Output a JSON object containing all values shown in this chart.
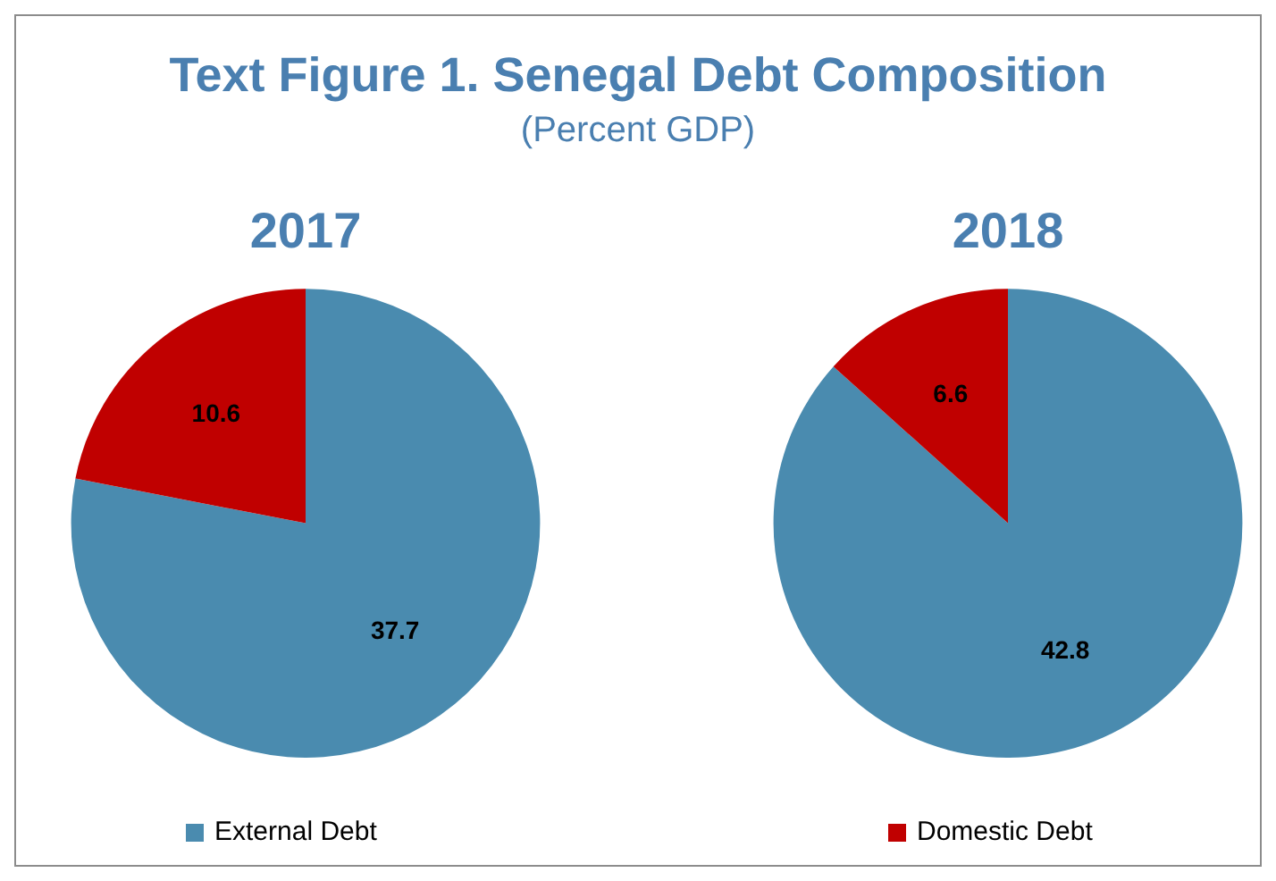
{
  "chart_data": [
    {
      "type": "other",
      "title": "Text Figure 1. Senegal Debt Composition",
      "subtitle": "(Percent GDP)"
    },
    {
      "type": "pie",
      "title": "2017",
      "categories": [
        "External Debt",
        null
      ],
      "values": [
        37.7,
        10.6
      ],
      "colors": [
        "#4a8baf",
        "#c00000"
      ],
      "data_labels": true,
      "legend": "bottom"
    },
    {
      "type": "pie",
      "title": "2018",
      "categories": [
        null,
        "Domestic Debt"
      ],
      "values": [
        42.8,
        6.6
      ],
      "colors": [
        "#4a8baf",
        "#c00000"
      ],
      "data_labels": true,
      "legend": "bottom"
    }
  ]
}
